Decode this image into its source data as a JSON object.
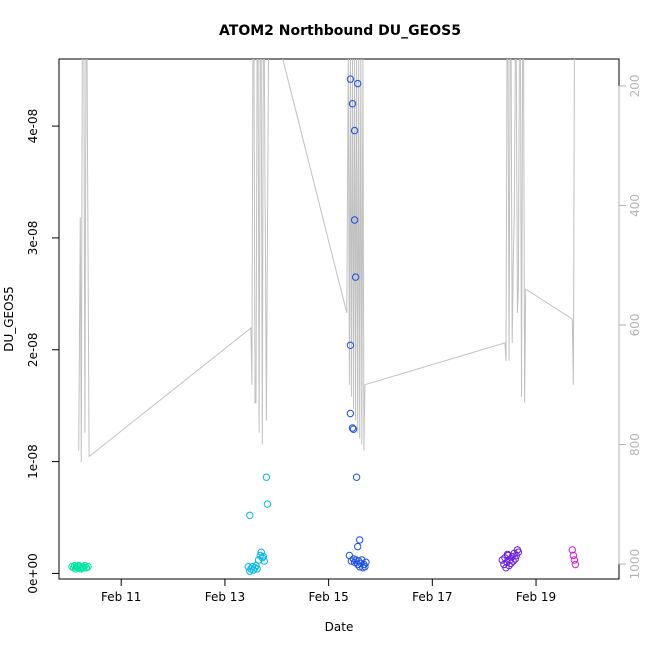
{
  "chart_data": {
    "type": "scatter",
    "title": "ATOM2 Northbound DU_GEOS5",
    "xlabel": "Date",
    "ylabel": "DU_GEOS5",
    "x_ticks": [
      {
        "value": 11,
        "label": "Feb 11"
      },
      {
        "value": 13,
        "label": "Feb 13"
      },
      {
        "value": 15,
        "label": "Feb 15"
      },
      {
        "value": 17,
        "label": "Feb 17"
      },
      {
        "value": 19,
        "label": "Feb 19"
      }
    ],
    "y_ticks": [
      {
        "value": 0,
        "label": "0e+00"
      },
      {
        "value": 1e-08,
        "label": "1e-08"
      },
      {
        "value": 2e-08,
        "label": "2e-08"
      },
      {
        "value": 3e-08,
        "label": "3e-08"
      },
      {
        "value": 4e-08,
        "label": "4e-08"
      }
    ],
    "right_ticks": [
      {
        "value": 200,
        "label": "200"
      },
      {
        "value": 400,
        "label": "400"
      },
      {
        "value": 600,
        "label": "600"
      },
      {
        "value": 800,
        "label": "800"
      },
      {
        "value": 1000,
        "label": "1000"
      }
    ],
    "xlim": [
      9.8,
      20.6
    ],
    "ylim": [
      -5e-10,
      4.6e-08
    ],
    "right_ylim": [
      1025,
      155
    ],
    "right_axis_color": "#b3b3b3",
    "pressure_line_color": "#c0c0c0",
    "pressure_line": [
      [
        10.18,
        810
      ],
      [
        10.21,
        420
      ],
      [
        10.23,
        830
      ],
      [
        10.25,
        150
      ],
      [
        10.28,
        150
      ],
      [
        10.3,
        780
      ],
      [
        10.32,
        150
      ],
      [
        10.34,
        150
      ],
      [
        10.38,
        820
      ],
      [
        13.5,
        605
      ],
      [
        13.52,
        700
      ],
      [
        13.54,
        150
      ],
      [
        13.56,
        150
      ],
      [
        13.58,
        730
      ],
      [
        13.6,
        730
      ],
      [
        13.62,
        150
      ],
      [
        13.64,
        150
      ],
      [
        13.66,
        780
      ],
      [
        13.68,
        150
      ],
      [
        13.7,
        150
      ],
      [
        13.72,
        800
      ],
      [
        13.74,
        150
      ],
      [
        13.76,
        150
      ],
      [
        13.8,
        760
      ],
      [
        13.84,
        150
      ],
      [
        13.88,
        150
      ],
      [
        14.1,
        150
      ],
      [
        15.35,
        580
      ],
      [
        15.38,
        150
      ],
      [
        15.4,
        700
      ],
      [
        15.42,
        150
      ],
      [
        15.44,
        720
      ],
      [
        15.46,
        150
      ],
      [
        15.48,
        740
      ],
      [
        15.5,
        150
      ],
      [
        15.52,
        760
      ],
      [
        15.54,
        150
      ],
      [
        15.56,
        780
      ],
      [
        15.58,
        150
      ],
      [
        15.6,
        790
      ],
      [
        15.62,
        150
      ],
      [
        15.64,
        800
      ],
      [
        15.66,
        150
      ],
      [
        15.68,
        810
      ],
      [
        15.7,
        700
      ],
      [
        18.4,
        630
      ],
      [
        18.42,
        660
      ],
      [
        18.44,
        150
      ],
      [
        18.46,
        150
      ],
      [
        18.48,
        660
      ],
      [
        18.5,
        150
      ],
      [
        18.52,
        150
      ],
      [
        18.54,
        630
      ],
      [
        18.56,
        500
      ],
      [
        18.58,
        420
      ],
      [
        18.6,
        150
      ],
      [
        18.62,
        150
      ],
      [
        18.64,
        580
      ],
      [
        18.66,
        540
      ],
      [
        18.68,
        150
      ],
      [
        18.7,
        150
      ],
      [
        18.72,
        720
      ],
      [
        18.74,
        150
      ],
      [
        18.76,
        150
      ],
      [
        18.78,
        730
      ],
      [
        18.8,
        540
      ],
      [
        19.7,
        590
      ],
      [
        19.72,
        700
      ],
      [
        19.74,
        150
      ],
      [
        19.76,
        150
      ]
    ],
    "points": [
      {
        "x": 10.05,
        "y": 6e-10,
        "color": "#00e5a0"
      },
      {
        "x": 10.08,
        "y": 5e-10,
        "color": "#00e5a0"
      },
      {
        "x": 10.1,
        "y": 7e-10,
        "color": "#00e5a0"
      },
      {
        "x": 10.12,
        "y": 4e-10,
        "color": "#00e5a0"
      },
      {
        "x": 10.14,
        "y": 6e-10,
        "color": "#00e5a0"
      },
      {
        "x": 10.16,
        "y": 5e-10,
        "color": "#00e5a0"
      },
      {
        "x": 10.18,
        "y": 7e-10,
        "color": "#00e5a0"
      },
      {
        "x": 10.2,
        "y": 6e-10,
        "color": "#00e5a0"
      },
      {
        "x": 10.22,
        "y": 4e-10,
        "color": "#00e5a0"
      },
      {
        "x": 10.24,
        "y": 5e-10,
        "color": "#00e5a0"
      },
      {
        "x": 10.26,
        "y": 6e-10,
        "color": "#00e5a0"
      },
      {
        "x": 10.28,
        "y": 5e-10,
        "color": "#00e5a0"
      },
      {
        "x": 10.3,
        "y": 7e-10,
        "color": "#00e5a0"
      },
      {
        "x": 10.33,
        "y": 5e-10,
        "color": "#00e5a0"
      },
      {
        "x": 10.36,
        "y": 6e-10,
        "color": "#00e5a0"
      },
      {
        "x": 13.48,
        "y": 5.2e-09,
        "color": "#00b7e8"
      },
      {
        "x": 13.8,
        "y": 8.6e-09,
        "color": "#00b7e8"
      },
      {
        "x": 13.82,
        "y": 6.2e-09,
        "color": "#00b7e8"
      },
      {
        "x": 13.45,
        "y": 6e-10,
        "color": "#00b7e8"
      },
      {
        "x": 13.48,
        "y": 2e-10,
        "color": "#00b7e8"
      },
      {
        "x": 13.5,
        "y": 4e-10,
        "color": "#00b7e8"
      },
      {
        "x": 13.53,
        "y": 6e-10,
        "color": "#00b7e8"
      },
      {
        "x": 13.55,
        "y": 3e-10,
        "color": "#00b7e8"
      },
      {
        "x": 13.58,
        "y": 5e-10,
        "color": "#00b7e8"
      },
      {
        "x": 13.6,
        "y": 7e-10,
        "color": "#00b7e8"
      },
      {
        "x": 13.62,
        "y": 4e-10,
        "color": "#00b7e8"
      },
      {
        "x": 13.65,
        "y": 1.2e-09,
        "color": "#00b7e8"
      },
      {
        "x": 13.68,
        "y": 1.6e-09,
        "color": "#00b7e8"
      },
      {
        "x": 13.7,
        "y": 1.9e-09,
        "color": "#00b7e8"
      },
      {
        "x": 13.72,
        "y": 1.4e-09,
        "color": "#00b7e8"
      },
      {
        "x": 13.74,
        "y": 1.5e-09,
        "color": "#00b7e8"
      },
      {
        "x": 13.76,
        "y": 1.1e-09,
        "color": "#00b7e8"
      },
      {
        "x": 15.42,
        "y": 4.42e-08,
        "color": "#1a4ee6"
      },
      {
        "x": 15.56,
        "y": 4.38e-08,
        "color": "#1a4ee6"
      },
      {
        "x": 15.46,
        "y": 4.2e-08,
        "color": "#1a4ee6"
      },
      {
        "x": 15.5,
        "y": 3.96e-08,
        "color": "#1a4ee6"
      },
      {
        "x": 15.5,
        "y": 3.16e-08,
        "color": "#1a4ee6"
      },
      {
        "x": 15.52,
        "y": 2.65e-08,
        "color": "#1a4ee6"
      },
      {
        "x": 15.42,
        "y": 2.04e-08,
        "color": "#1a4ee6"
      },
      {
        "x": 15.42,
        "y": 1.43e-08,
        "color": "#1a4ee6"
      },
      {
        "x": 15.46,
        "y": 1.3e-08,
        "color": "#1a4ee6"
      },
      {
        "x": 15.48,
        "y": 1.29e-08,
        "color": "#1a4ee6"
      },
      {
        "x": 15.54,
        "y": 8.6e-09,
        "color": "#1a4ee6"
      },
      {
        "x": 15.6,
        "y": 3e-09,
        "color": "#1a4ee6"
      },
      {
        "x": 15.56,
        "y": 2.4e-09,
        "color": "#1a4ee6"
      },
      {
        "x": 15.4,
        "y": 1.6e-09,
        "color": "#1a4ee6"
      },
      {
        "x": 15.44,
        "y": 1.1e-09,
        "color": "#1a4ee6"
      },
      {
        "x": 15.48,
        "y": 1.3e-09,
        "color": "#1a4ee6"
      },
      {
        "x": 15.5,
        "y": 1e-09,
        "color": "#1a4ee6"
      },
      {
        "x": 15.53,
        "y": 1.2e-09,
        "color": "#1a4ee6"
      },
      {
        "x": 15.56,
        "y": 8e-10,
        "color": "#1a4ee6"
      },
      {
        "x": 15.58,
        "y": 1.1e-09,
        "color": "#1a4ee6"
      },
      {
        "x": 15.6,
        "y": 6e-10,
        "color": "#1a4ee6"
      },
      {
        "x": 15.62,
        "y": 9e-10,
        "color": "#1a4ee6"
      },
      {
        "x": 15.64,
        "y": 1.2e-09,
        "color": "#1a4ee6"
      },
      {
        "x": 15.66,
        "y": 5e-10,
        "color": "#1a4ee6"
      },
      {
        "x": 15.68,
        "y": 8e-10,
        "color": "#1a4ee6"
      },
      {
        "x": 15.7,
        "y": 6e-10,
        "color": "#1a4ee6"
      },
      {
        "x": 15.72,
        "y": 1e-09,
        "color": "#1a4ee6"
      },
      {
        "x": 18.35,
        "y": 1.2e-09,
        "color": "#6b1ee0"
      },
      {
        "x": 18.38,
        "y": 8e-10,
        "color": "#6b1ee0"
      },
      {
        "x": 18.4,
        "y": 1.4e-09,
        "color": "#6b1ee0"
      },
      {
        "x": 18.42,
        "y": 5e-10,
        "color": "#6b1ee0"
      },
      {
        "x": 18.44,
        "y": 1e-09,
        "color": "#6b1ee0"
      },
      {
        "x": 18.46,
        "y": 1.6e-09,
        "color": "#6b1ee0"
      },
      {
        "x": 18.48,
        "y": 7e-10,
        "color": "#6b1ee0"
      },
      {
        "x": 18.5,
        "y": 1.2e-09,
        "color": "#6b1ee0"
      },
      {
        "x": 18.52,
        "y": 9e-10,
        "color": "#6b1ee0"
      },
      {
        "x": 18.54,
        "y": 1.5e-09,
        "color": "#6b1ee0"
      },
      {
        "x": 18.56,
        "y": 1.1e-09,
        "color": "#6b1ee0"
      },
      {
        "x": 18.58,
        "y": 1.8e-09,
        "color": "#6b1ee0"
      },
      {
        "x": 18.6,
        "y": 1.3e-09,
        "color": "#6b1ee0"
      },
      {
        "x": 18.62,
        "y": 1.6e-09,
        "color": "#6b1ee0"
      },
      {
        "x": 18.64,
        "y": 2.1e-09,
        "color": "#6b1ee0"
      },
      {
        "x": 18.66,
        "y": 1.9e-09,
        "color": "#6b1ee0"
      },
      {
        "x": 18.45,
        "y": 1.7e-09,
        "color": "#6b1ee0"
      },
      {
        "x": 19.7,
        "y": 2.1e-09,
        "color": "#d21ed2"
      },
      {
        "x": 19.72,
        "y": 1.6e-09,
        "color": "#d21ed2"
      },
      {
        "x": 19.74,
        "y": 1.2e-09,
        "color": "#d21ed2"
      },
      {
        "x": 19.76,
        "y": 8e-10,
        "color": "#d21ed2"
      }
    ]
  }
}
